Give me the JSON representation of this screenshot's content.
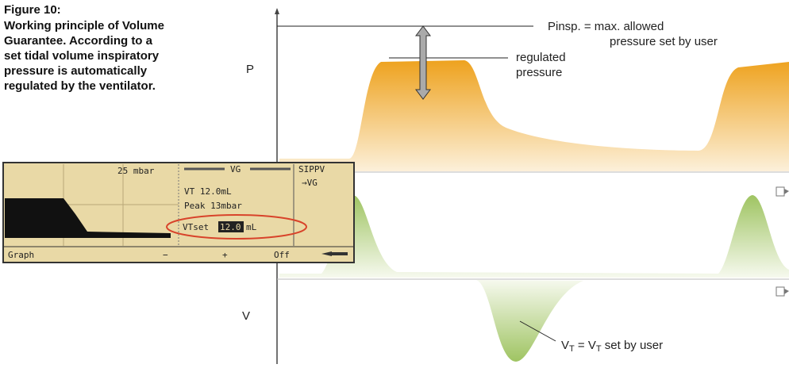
{
  "caption": {
    "label": "Figure 10:",
    "lines": [
      "Working principle of Volume",
      "Guarantee. According to a",
      "set tidal volume inspiratory",
      "pressure is automatically",
      "regulated by the ventilator."
    ]
  },
  "axes": {
    "pressure": "P",
    "volume": "V"
  },
  "annotations": {
    "pinsp": [
      "Pinsp. = max. allowed",
      "pressure set by user"
    ],
    "regulated": [
      "regulated",
      "pressure"
    ],
    "vt": {
      "parts": [
        "V",
        "T",
        " = V",
        "T",
        " set by user"
      ]
    }
  },
  "screen": {
    "scale": "25 mbar",
    "mode_title": "VG",
    "mode": "SIPPV",
    "mode_sub": "→VG",
    "vt": "VT  12.0mL",
    "peak": "Peak  13mbar",
    "vtset_label": "VTset",
    "vtset_value": "12.0",
    "vtset_unit": "mL",
    "buttons": [
      "Graph",
      "−",
      "+",
      "Off"
    ]
  }
}
